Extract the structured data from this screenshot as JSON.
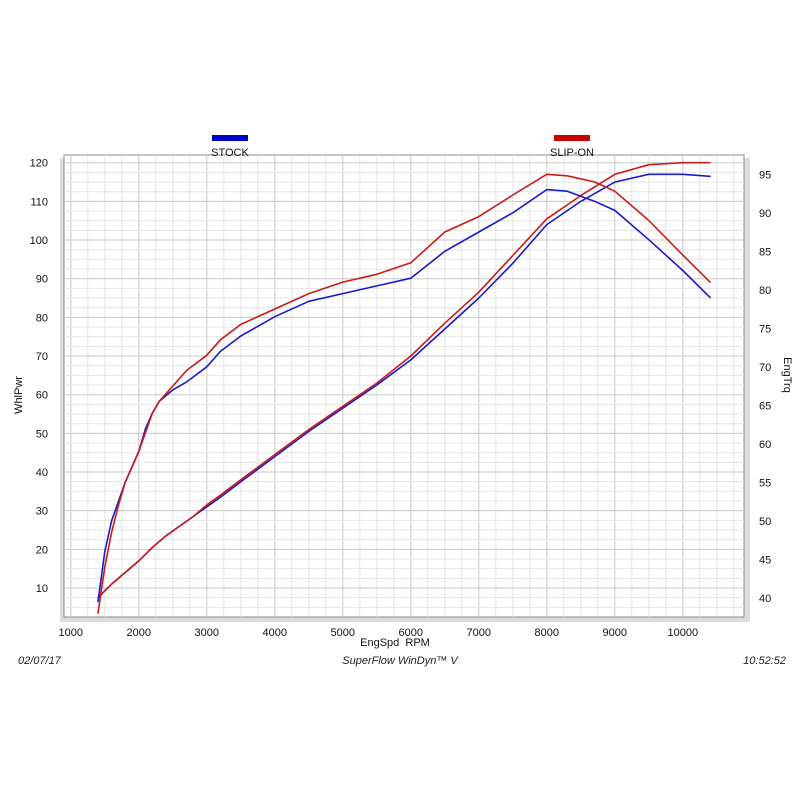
{
  "chart_data": {
    "type": "line",
    "xlabel": "EngSpd  RPM",
    "ylabel_left": "WhlPwr",
    "ylabel_right": "EngTrq",
    "xlim": [
      900,
      10900
    ],
    "ylim_left": [
      2.5,
      122
    ],
    "ylim_right": [
      37.5,
      97.5
    ],
    "x_ticks": [
      1000,
      2000,
      3000,
      4000,
      5000,
      6000,
      7000,
      8000,
      9000,
      10000
    ],
    "y_ticks_left": [
      10,
      20,
      30,
      40,
      50,
      60,
      70,
      80,
      90,
      100,
      110,
      120
    ],
    "y_ticks_right": [
      40,
      45,
      50,
      55,
      60,
      65,
      70,
      75,
      80,
      85,
      90,
      95
    ],
    "grid": true,
    "legend": [
      {
        "name": "STOCK",
        "color": "#0000cc"
      },
      {
        "name": "SLIP-ON",
        "color": "#cc0000"
      }
    ],
    "series": [
      {
        "name": "STOCK",
        "measure": "WhlPwr",
        "axis": "left",
        "color": "#1a1acc",
        "x": [
          1400,
          1600,
          1800,
          2000,
          2200,
          2400,
          2600,
          2800,
          3000,
          3200,
          3500,
          4000,
          4500,
          5000,
          5500,
          6000,
          6500,
          7000,
          7500,
          8000,
          8500,
          9000,
          9500,
          10000,
          10400
        ],
        "y": [
          7.5,
          11,
          14,
          17,
          20.5,
          23.5,
          26,
          28.5,
          31,
          33.5,
          37.5,
          44,
          50.5,
          56.5,
          62.5,
          69,
          77,
          85,
          94,
          104,
          110,
          115,
          117,
          117,
          116.5
        ]
      },
      {
        "name": "SLIP-ON",
        "measure": "WhlPwr",
        "axis": "left",
        "color": "#cc1a1a",
        "x": [
          1400,
          1600,
          1800,
          2000,
          2200,
          2400,
          2600,
          2800,
          3000,
          3200,
          3500,
          4000,
          4500,
          5000,
          5500,
          6000,
          6500,
          7000,
          7500,
          8000,
          8500,
          9000,
          9500,
          10000,
          10400
        ],
        "y": [
          7.5,
          11,
          14,
          17,
          20.5,
          23.5,
          26,
          28.5,
          31.5,
          34,
          38,
          44.5,
          51,
          57,
          63,
          70,
          78.5,
          86.5,
          96,
          105.5,
          111.5,
          117,
          119.5,
          120,
          120
        ]
      },
      {
        "name": "STOCK",
        "measure": "EngTrq",
        "axis": "right",
        "color": "#1a1acc",
        "x": [
          1400,
          1500,
          1600,
          1700,
          1800,
          2000,
          2100,
          2200,
          2300,
          2500,
          2700,
          3000,
          3200,
          3500,
          4000,
          4500,
          5000,
          5500,
          6000,
          6500,
          7000,
          7500,
          8000,
          8300,
          8700,
          9000,
          9500,
          10000,
          10400
        ],
        "y": [
          39.5,
          46,
          50,
          52.5,
          55,
          59,
          62,
          64,
          65.5,
          67,
          68,
          70,
          72,
          74,
          76.5,
          78.5,
          79.5,
          80.5,
          81.5,
          85,
          87.5,
          90,
          93,
          92.8,
          91.5,
          90.3,
          86.5,
          82.5,
          79
        ]
      },
      {
        "name": "SLIP-ON",
        "measure": "EngTrq",
        "axis": "right",
        "color": "#cc1a1a",
        "x": [
          1400,
          1500,
          1600,
          1700,
          1800,
          2000,
          2100,
          2200,
          2300,
          2500,
          2700,
          3000,
          3200,
          3500,
          4000,
          4500,
          5000,
          5500,
          6000,
          6500,
          7000,
          7500,
          8000,
          8300,
          8700,
          9000,
          9500,
          10000,
          10400
        ],
        "y": [
          38,
          44,
          48.5,
          52,
          55,
          59,
          61.5,
          64,
          65.5,
          67.5,
          69.5,
          71.5,
          73.5,
          75.5,
          77.5,
          79.5,
          81,
          82,
          83.5,
          87.5,
          89.5,
          92.3,
          95,
          94.8,
          94,
          92.8,
          89,
          84.5,
          81
        ]
      }
    ]
  },
  "footer": {
    "date": "02/07/17",
    "software": "SuperFlow WinDyn™ V",
    "time": "10:52:52"
  }
}
